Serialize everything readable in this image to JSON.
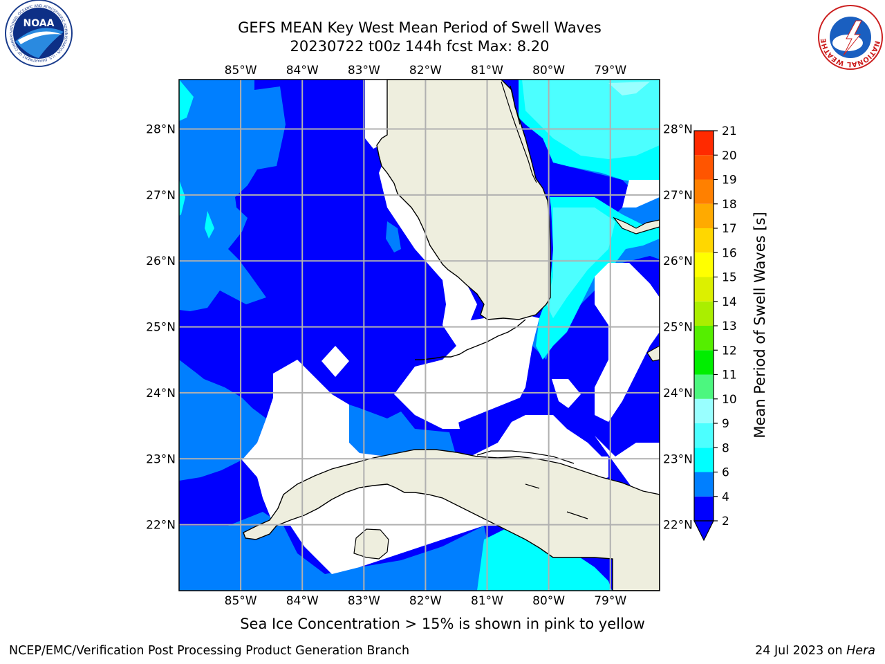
{
  "header": {
    "title_line1": "GEFS MEAN Key West Mean Period of Swell Waves",
    "title_line2": "20230722 t00z 144h fcst    Max: 8.20"
  },
  "logos": {
    "noaa_text": "NOAA",
    "noaa_ring_text": "NATIONAL OCEANIC AND ATMOSPHERIC ADMINISTRATION · U.S. DEPARTMENT OF COMMERCE",
    "nws_ring_text": "NATIONAL WEATHER SERVICE"
  },
  "map": {
    "lon_labels": [
      "85°W",
      "84°W",
      "83°W",
      "82°W",
      "81°W",
      "80°W",
      "79°W"
    ],
    "lat_labels": [
      "28°N",
      "27°N",
      "26°N",
      "25°N",
      "24°N",
      "23°N",
      "22°N"
    ],
    "lon_extent": [
      -86.0,
      -78.2
    ],
    "lat_extent": [
      21.0,
      28.75
    ],
    "colors": {
      "land": "#eeeede",
      "no_data": "#ffffff",
      "grid": "#b0b0b0",
      "coast": "#000000"
    }
  },
  "colorbar": {
    "label": "Mean Period of Swell Waves [s]",
    "ticks": [
      "2",
      "4",
      "6",
      "8",
      "9",
      "10",
      "11",
      "12",
      "13",
      "14",
      "15",
      "16",
      "17",
      "18",
      "19",
      "20",
      "21"
    ],
    "colors": [
      "#0000fe",
      "#007fff",
      "#00ffff",
      "#4cffff",
      "#99ffff",
      "#4cf77f",
      "#00ee00",
      "#55ee00",
      "#aaee00",
      "#dcf000",
      "#ffff00",
      "#ffd700",
      "#ffaa00",
      "#ff8000",
      "#ff5500",
      "#ff2a00",
      "#ff0000"
    ],
    "extend": "min"
  },
  "annotation": "Sea Ice Concentration > 15% is shown in pink to yellow",
  "footer": {
    "left": "NCEP/EMC/Verification Post Processing Product Generation Branch",
    "right_date": "24 Jul 2023 on",
    "right_host": "Hera"
  }
}
